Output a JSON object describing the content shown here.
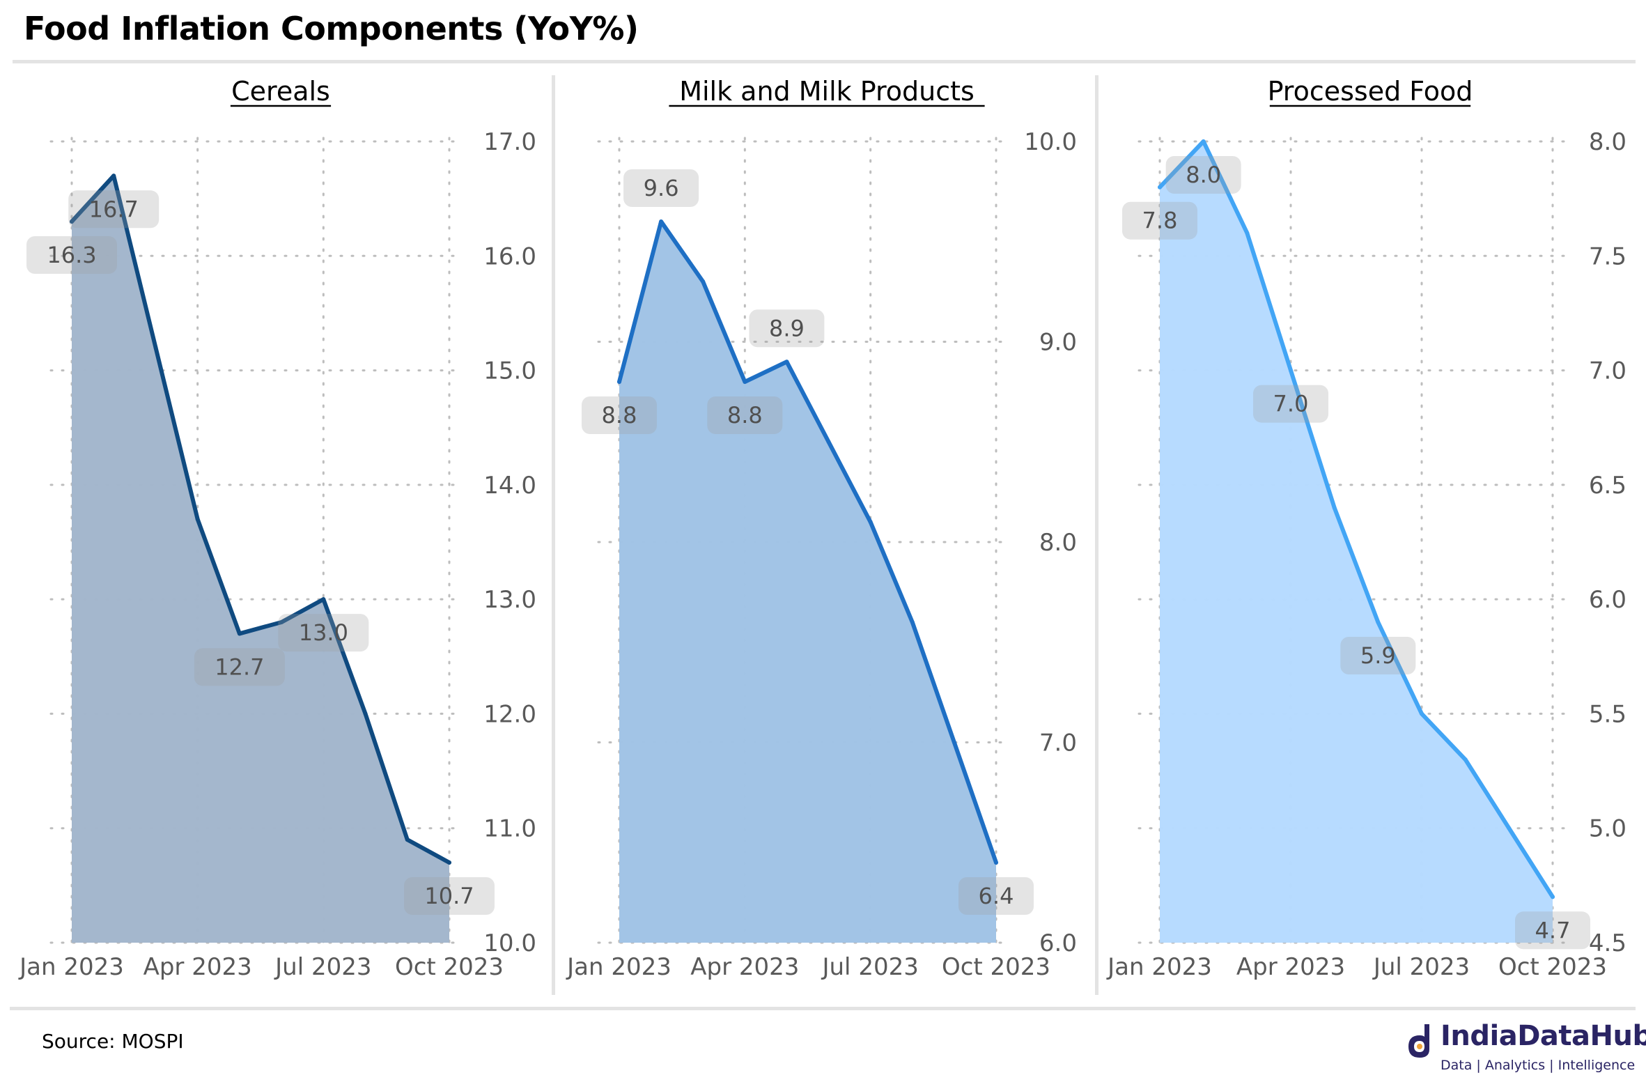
{
  "title": "Food Inflation Components (YoY%)",
  "source": "Source: MOSPI",
  "brand": {
    "name": "IndiaDataHub",
    "tagline": "Data | Analytics | Intelligence",
    "color": "#2a2464"
  },
  "chart_data": [
    {
      "type": "area",
      "title": "Cereals",
      "x": [
        "Jan 2023",
        "Feb 2023",
        "Mar 2023",
        "Apr 2023",
        "May 2023",
        "Jun 2023",
        "Jul 2023",
        "Aug 2023",
        "Sep 2023",
        "Oct 2023"
      ],
      "xticks": [
        "Jan 2023",
        "Apr 2023",
        "Jul 2023",
        "Oct 2023"
      ],
      "series": [
        {
          "values": [
            16.3,
            16.7,
            15.2,
            13.7,
            12.7,
            12.8,
            13.0,
            12.0,
            10.9,
            10.7
          ]
        }
      ],
      "labels": [
        {
          "index": 0,
          "text": "16.3",
          "pos": "below"
        },
        {
          "index": 1,
          "text": "16.7",
          "pos": "below"
        },
        {
          "index": 4,
          "text": "12.7",
          "pos": "below"
        },
        {
          "index": 6,
          "text": "13.0",
          "pos": "below"
        },
        {
          "index": 9,
          "text": "10.7",
          "pos": "below"
        }
      ],
      "ylim": [
        10.0,
        17.0
      ],
      "yticks": [
        "10.0",
        "11.0",
        "12.0",
        "13.0",
        "14.0",
        "15.0",
        "16.0",
        "17.0"
      ],
      "line_color": "#0f4a80",
      "fill_color": "#a2b6cc",
      "grid": true
    },
    {
      "type": "area",
      "title": "Milk and Milk Products",
      "x": [
        "Jan 2023",
        "Feb 2023",
        "Mar 2023",
        "Apr 2023",
        "May 2023",
        "Jun 2023",
        "Jul 2023",
        "Aug 2023",
        "Sep 2023",
        "Oct 2023"
      ],
      "xticks": [
        "Jan 2023",
        "Apr 2023",
        "Jul 2023",
        "Oct 2023"
      ],
      "series": [
        {
          "values": [
            8.8,
            9.6,
            9.3,
            8.8,
            8.9,
            8.5,
            8.1,
            7.6,
            7.0,
            6.4
          ]
        }
      ],
      "labels": [
        {
          "index": 0,
          "text": "8.8",
          "pos": "below"
        },
        {
          "index": 1,
          "text": "9.6",
          "pos": "above"
        },
        {
          "index": 3,
          "text": "8.8",
          "pos": "below"
        },
        {
          "index": 4,
          "text": "8.9",
          "pos": "above"
        },
        {
          "index": 9,
          "text": "6.4",
          "pos": "below"
        }
      ],
      "ylim": [
        6.0,
        10.0
      ],
      "yticks": [
        "6.0",
        "7.0",
        "8.0",
        "9.0",
        "10.0"
      ],
      "line_color": "#1e6fc4",
      "fill_color": "#a0c3e6",
      "grid": true
    },
    {
      "type": "area",
      "title": "Processed Food",
      "x": [
        "Jan 2023",
        "Feb 2023",
        "Mar 2023",
        "Apr 2023",
        "May 2023",
        "Jun 2023",
        "Jul 2023",
        "Aug 2023",
        "Sep 2023",
        "Oct 2023"
      ],
      "xticks": [
        "Jan 2023",
        "Apr 2023",
        "Jul 2023",
        "Oct 2023"
      ],
      "series": [
        {
          "values": [
            7.8,
            8.0,
            7.6,
            7.0,
            6.4,
            5.9,
            5.5,
            5.3,
            5.0,
            4.7
          ]
        }
      ],
      "labels": [
        {
          "index": 0,
          "text": "7.8",
          "pos": "below"
        },
        {
          "index": 1,
          "text": "8.0",
          "pos": "below"
        },
        {
          "index": 3,
          "text": "7.0",
          "pos": "below"
        },
        {
          "index": 5,
          "text": "5.9",
          "pos": "below"
        },
        {
          "index": 9,
          "text": "4.7",
          "pos": "below"
        }
      ],
      "ylim": [
        4.5,
        8.0
      ],
      "yticks": [
        "4.5",
        "5.0",
        "5.5",
        "6.0",
        "6.5",
        "7.0",
        "7.5",
        "8.0"
      ],
      "line_color": "#42a5f5",
      "fill_color": "#b6daff",
      "grid": true
    }
  ]
}
